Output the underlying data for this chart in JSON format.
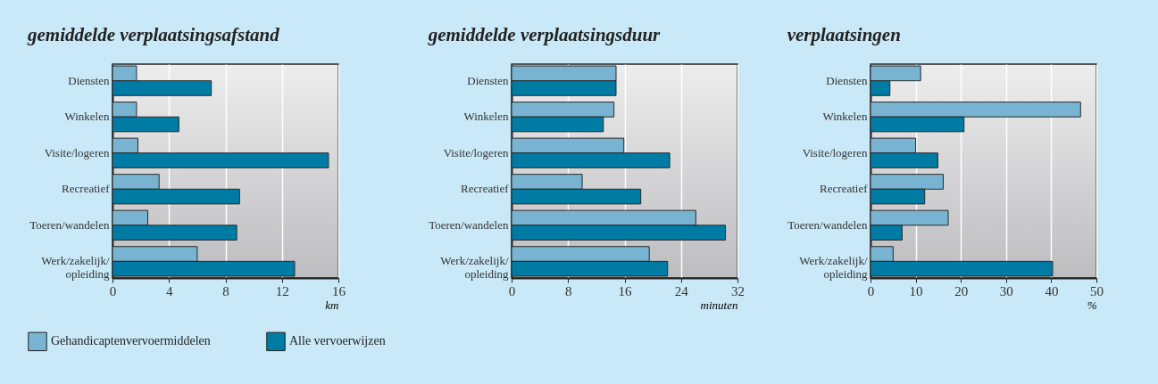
{
  "chart_data": [
    {
      "type": "bar",
      "orientation": "horizontal",
      "title": "gemiddelde verplaatsingsafstand",
      "xlabel": "km",
      "categories": [
        "Diensten",
        "Winkelen",
        "Visite/logeren",
        "Recreatief",
        "Toeren/wandelen",
        "Werk/zakelijk/\nopleiding"
      ],
      "xlim": [
        0,
        16
      ],
      "xticks": [
        0,
        4,
        8,
        12,
        16
      ],
      "grid": "x",
      "legend": "bottom left",
      "series": [
        {
          "name": "Gehandicaptenvervoermiddelen",
          "color": "#78b4d2",
          "values": [
            1.7,
            1.7,
            1.8,
            3.3,
            2.5,
            6.0
          ]
        },
        {
          "name": "Alle vervoerwijzen",
          "color": "#007ba3",
          "values": [
            7.0,
            4.7,
            15.3,
            9.0,
            8.8,
            12.9
          ]
        }
      ]
    },
    {
      "type": "bar",
      "orientation": "horizontal",
      "title": "gemiddelde verplaatsingsduur",
      "xlabel": "minuten",
      "categories": [
        "Diensten",
        "Winkelen",
        "Visite/logeren",
        "Recreatief",
        "Toeren/wandelen",
        "Werk/zakelijk/\nopleiding"
      ],
      "xlim": [
        0,
        32
      ],
      "xticks": [
        0,
        8,
        16,
        24,
        32
      ],
      "grid": "x",
      "series": [
        {
          "color": "#78b4d2",
          "values": [
            14.8,
            14.5,
            15.9,
            10.0,
            26.1,
            19.5
          ]
        },
        {
          "color": "#007ba3",
          "values": [
            14.8,
            13.0,
            22.4,
            18.3,
            30.3,
            22.1
          ]
        }
      ]
    },
    {
      "type": "bar",
      "orientation": "horizontal",
      "title": "verplaatsingen",
      "xlabel": "%",
      "categories": [
        "Diensten",
        "Winkelen",
        "Visite/logeren",
        "Recreatief",
        "Toeren/wandelen",
        "Werk/zakelijk/\nopleiding"
      ],
      "xlim": [
        0,
        50
      ],
      "xticks": [
        0,
        10,
        20,
        30,
        40,
        50
      ],
      "grid": "x",
      "series": [
        {
          "color": "#78b4d2",
          "values": [
            11.1,
            46.5,
            10.0,
            16.1,
            17.2,
            5.0
          ]
        },
        {
          "color": "#007ba3",
          "values": [
            4.3,
            20.7,
            14.9,
            12.0,
            7.0,
            40.3
          ]
        }
      ]
    }
  ]
}
